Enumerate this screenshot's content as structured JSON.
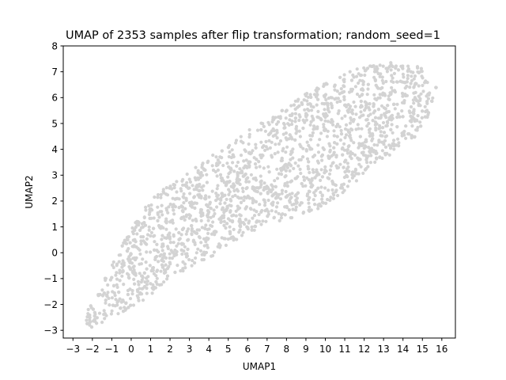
{
  "chart_data": {
    "type": "scatter",
    "title": "UMAP of 2353 samples after flip transformation; random_seed=1",
    "xlabel": "UMAP1",
    "ylabel": "UMAP2",
    "xlim": [
      -3.5,
      16.7
    ],
    "ylim": [
      -3.3,
      8.0
    ],
    "xticks": [
      "−3",
      "−2",
      "−1",
      "0",
      "1",
      "2",
      "3",
      "4",
      "5",
      "6",
      "7",
      "8",
      "9",
      "10",
      "11",
      "12",
      "13",
      "14",
      "15",
      "16"
    ],
    "yticks": [
      "−3",
      "−2",
      "−1",
      "0",
      "1",
      "2",
      "3",
      "4",
      "5",
      "6",
      "7",
      "8"
    ],
    "grid": false,
    "legend": "none",
    "point_color": "#d3d3d3",
    "n_points": 2353,
    "cloud_outline": [
      [
        -2.4,
        -2.8
      ],
      [
        -2.2,
        -2.1
      ],
      [
        -1.5,
        -1.2
      ],
      [
        -0.4,
        0.4
      ],
      [
        0.8,
        1.9
      ],
      [
        2.2,
        2.8
      ],
      [
        3.8,
        3.6
      ],
      [
        5.5,
        4.5
      ],
      [
        7.5,
        5.4
      ],
      [
        9.5,
        6.4
      ],
      [
        11.5,
        7.1
      ],
      [
        13.5,
        7.45
      ],
      [
        15.0,
        7.2
      ],
      [
        15.8,
        6.4
      ],
      [
        15.3,
        5.3
      ],
      [
        14.4,
        4.2
      ],
      [
        12.4,
        3.4
      ],
      [
        11.5,
        2.7
      ],
      [
        10.5,
        2.0
      ],
      [
        8.5,
        1.3
      ],
      [
        6.0,
        0.8
      ],
      [
        4.5,
        0.0
      ],
      [
        2.5,
        -0.8
      ],
      [
        0.5,
        -1.9
      ],
      [
        -1.2,
        -2.6
      ],
      [
        -2.1,
        -2.9
      ]
    ]
  }
}
